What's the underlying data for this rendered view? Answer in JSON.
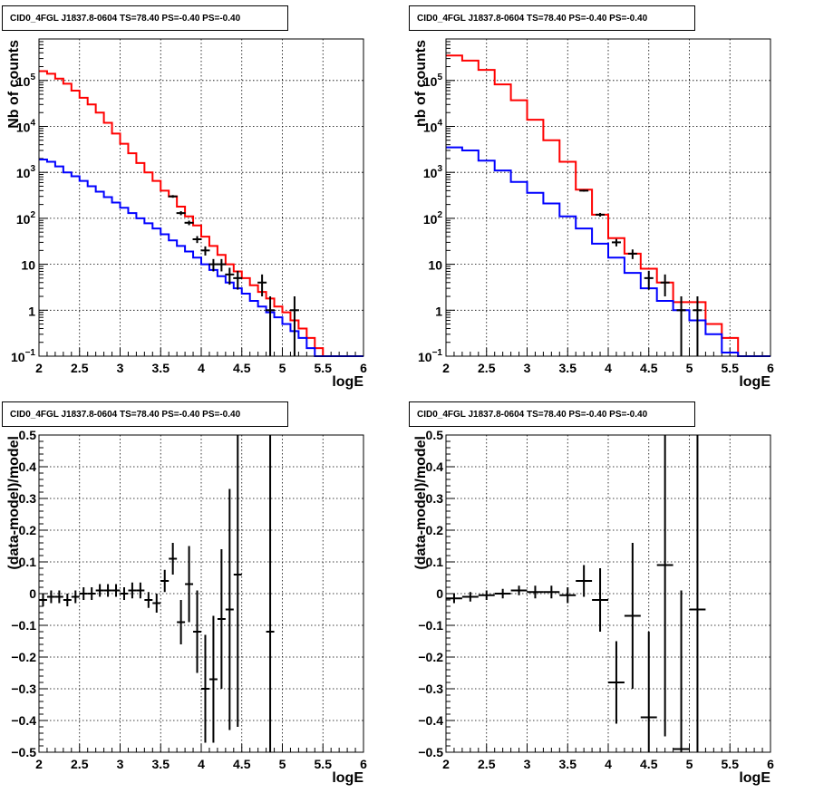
{
  "chart_data": [
    {
      "type": "histogram-log",
      "title": "CID0_4FGL J1837.8-0604 TS=78.40 PS=-0.40 PS=-0.40",
      "xlabel": "logE",
      "ylabel": "Nb of counts",
      "xlim": [
        2,
        6
      ],
      "ylim": [
        0.1,
        800000
      ],
      "log_y": true,
      "grid": true,
      "x_ticks": [
        "2",
        "2.5",
        "3",
        "3.5",
        "4",
        "4.5",
        "5",
        "5.5",
        "6"
      ],
      "y_ticks": [
        {
          "v": 0.1,
          "label": "10",
          "exp": "−1"
        },
        {
          "v": 1,
          "label": "1",
          "exp": ""
        },
        {
          "v": 10,
          "label": "10",
          "exp": ""
        },
        {
          "v": 100,
          "label": "10",
          "exp": "2"
        },
        {
          "v": 1000,
          "label": "10",
          "exp": "3"
        },
        {
          "v": 10000,
          "label": "10",
          "exp": "4"
        },
        {
          "v": 100000,
          "label": "10",
          "exp": "5"
        }
      ],
      "bin_edges": [
        2.0,
        2.1,
        2.2,
        2.3,
        2.4,
        2.5,
        2.6,
        2.7,
        2.8,
        2.9,
        3.0,
        3.1,
        3.2,
        3.3,
        3.4,
        3.5,
        3.6,
        3.7,
        3.8,
        3.9,
        4.0,
        4.1,
        4.2,
        4.3,
        4.4,
        4.5,
        4.6,
        4.7,
        4.8,
        4.9,
        5.0,
        5.1,
        5.2,
        5.3,
        5.4,
        5.5,
        5.6,
        5.7,
        5.8,
        5.9,
        6.0
      ],
      "series": [
        {
          "color": "#ff0000",
          "values": [
            160000,
            140000,
            110000,
            85000,
            60000,
            42000,
            30000,
            20000,
            12000,
            7000,
            4200,
            2600,
            1600,
            1000,
            650,
            400,
            300,
            180,
            110,
            70,
            40,
            25,
            16,
            10,
            7,
            5,
            3.5,
            2.5,
            1.8,
            1.2,
            0.9,
            0.6,
            0.4,
            0.25,
            0.15,
            0.1,
            0.1,
            0.1,
            0.1,
            0.1
          ]
        },
        {
          "color": "#0000ff",
          "values": [
            1900,
            1700,
            1350,
            1000,
            820,
            650,
            500,
            380,
            290,
            220,
            170,
            130,
            100,
            78,
            60,
            45,
            33,
            25,
            19,
            14,
            10,
            7.5,
            5.5,
            4,
            3,
            2.3,
            1.6,
            1.2,
            0.9,
            0.7,
            0.5,
            0.35,
            0.25,
            0.15,
            0.1,
            0.1,
            0.1,
            0.1,
            0.1,
            0.1
          ]
        }
      ],
      "data_points": [
        {
          "x": 3.65,
          "y": 300,
          "lo": 280,
          "hi": 320
        },
        {
          "x": 3.75,
          "y": 130,
          "lo": 117,
          "hi": 143
        },
        {
          "x": 3.85,
          "y": 80,
          "lo": 71,
          "hi": 89
        },
        {
          "x": 3.95,
          "y": 35,
          "lo": 29,
          "hi": 41
        },
        {
          "x": 4.05,
          "y": 20,
          "lo": 15.5,
          "hi": 24.5
        },
        {
          "x": 4.15,
          "y": 10,
          "lo": 7,
          "hi": 13
        },
        {
          "x": 4.25,
          "y": 10,
          "lo": 7,
          "hi": 13
        },
        {
          "x": 4.35,
          "y": 6,
          "lo": 3.6,
          "hi": 8.4
        },
        {
          "x": 4.45,
          "y": 5,
          "lo": 2.8,
          "hi": 7.2
        },
        {
          "x": 4.75,
          "y": 4,
          "lo": 2,
          "hi": 6
        },
        {
          "x": 4.85,
          "y": 1,
          "lo": 0.1,
          "hi": 2
        },
        {
          "x": 5.15,
          "y": 1,
          "lo": 0.1,
          "hi": 2
        }
      ]
    },
    {
      "type": "histogram-log",
      "title": "CID0_4FGL J1837.8-0604 TS=78.40 PS=-0.40 PS=-0.40",
      "xlabel": "logE",
      "ylabel": "nb of counts",
      "xlim": [
        2,
        6
      ],
      "ylim": [
        0.1,
        800000
      ],
      "log_y": true,
      "grid": true,
      "x_ticks": [
        "2",
        "2.5",
        "3",
        "3.5",
        "4",
        "4.5",
        "5",
        "5.5",
        "6"
      ],
      "y_ticks": [
        {
          "v": 0.1,
          "label": "10",
          "exp": "−1"
        },
        {
          "v": 1,
          "label": "1",
          "exp": ""
        },
        {
          "v": 10,
          "label": "10",
          "exp": ""
        },
        {
          "v": 100,
          "label": "10",
          "exp": "2"
        },
        {
          "v": 1000,
          "label": "10",
          "exp": "3"
        },
        {
          "v": 10000,
          "label": "10",
          "exp": "4"
        },
        {
          "v": 100000,
          "label": "10",
          "exp": "5"
        }
      ],
      "bin_edges": [
        2.0,
        2.2,
        2.4,
        2.6,
        2.8,
        3.0,
        3.2,
        3.4,
        3.6,
        3.8,
        4.0,
        4.2,
        4.4,
        4.6,
        4.8,
        5.0,
        5.2,
        5.4,
        5.6,
        5.8,
        6.0
      ],
      "series": [
        {
          "color": "#ff0000",
          "values": [
            350000,
            270000,
            170000,
            82000,
            37000,
            14000,
            5000,
            1700,
            420,
            120,
            37,
            17,
            8,
            4,
            1.5,
            1.5,
            0.5,
            0.25,
            0.1,
            0.1
          ]
        },
        {
          "color": "#0000ff",
          "values": [
            3500,
            3000,
            1800,
            1100,
            620,
            360,
            210,
            110,
            60,
            28,
            14,
            6.5,
            3,
            1.6,
            1,
            0.6,
            0.3,
            0.12,
            0.1,
            0.1
          ]
        }
      ],
      "data_points": [
        {
          "x": 3.7,
          "y": 400,
          "lo": 380,
          "hi": 420
        },
        {
          "x": 3.9,
          "y": 120,
          "lo": 109,
          "hi": 131
        },
        {
          "x": 4.1,
          "y": 30,
          "lo": 24.5,
          "hi": 35.5
        },
        {
          "x": 4.3,
          "y": 17,
          "lo": 13,
          "hi": 21
        },
        {
          "x": 4.5,
          "y": 5,
          "lo": 2.8,
          "hi": 7.2
        },
        {
          "x": 4.7,
          "y": 4,
          "lo": 2,
          "hi": 6
        },
        {
          "x": 4.9,
          "y": 1,
          "lo": 0.1,
          "hi": 2
        },
        {
          "x": 5.1,
          "y": 1,
          "lo": 0.1,
          "hi": 2
        }
      ]
    },
    {
      "type": "scatter-errorbars",
      "title": "CID0_4FGL J1837.8-0604 TS=78.40 PS=-0.40 PS=-0.40",
      "xlabel": "logE",
      "ylabel": "(data-model)/model",
      "xlim": [
        2,
        6
      ],
      "ylim": [
        -0.5,
        0.5
      ],
      "grid": true,
      "x_ticks": [
        "2",
        "2.5",
        "3",
        "3.5",
        "4",
        "4.5",
        "5",
        "5.5",
        "6"
      ],
      "y_ticks": [
        "−0.5",
        "−0.4",
        "−0.3",
        "−0.2",
        "−0.1",
        "0",
        "0.1",
        "0.2",
        "0.3",
        "0.4",
        "0.5"
      ],
      "half_width": 0.05,
      "points": [
        {
          "x": 2.05,
          "y": -0.02,
          "err": 0.02
        },
        {
          "x": 2.15,
          "y": -0.01,
          "err": 0.02
        },
        {
          "x": 2.25,
          "y": -0.01,
          "err": 0.02
        },
        {
          "x": 2.35,
          "y": -0.02,
          "err": 0.02
        },
        {
          "x": 2.45,
          "y": -0.01,
          "err": 0.02
        },
        {
          "x": 2.55,
          "y": 0.0,
          "err": 0.02
        },
        {
          "x": 2.65,
          "y": 0.0,
          "err": 0.02
        },
        {
          "x": 2.75,
          "y": 0.01,
          "err": 0.02
        },
        {
          "x": 2.85,
          "y": 0.01,
          "err": 0.02
        },
        {
          "x": 2.95,
          "y": 0.01,
          "err": 0.02
        },
        {
          "x": 3.05,
          "y": 0.0,
          "err": 0.02
        },
        {
          "x": 3.15,
          "y": 0.01,
          "err": 0.025
        },
        {
          "x": 3.25,
          "y": 0.01,
          "err": 0.025
        },
        {
          "x": 3.35,
          "y": -0.02,
          "err": 0.025
        },
        {
          "x": 3.45,
          "y": -0.03,
          "err": 0.03
        },
        {
          "x": 3.55,
          "y": 0.04,
          "err": 0.035
        },
        {
          "x": 3.65,
          "y": 0.11,
          "err": 0.05
        },
        {
          "x": 3.75,
          "y": -0.09,
          "err": 0.07
        },
        {
          "x": 3.85,
          "y": 0.03,
          "err": 0.12
        },
        {
          "x": 3.95,
          "y": -0.12,
          "err": 0.13
        },
        {
          "x": 4.05,
          "y": -0.3,
          "err": 0.17
        },
        {
          "x": 4.15,
          "y": -0.27,
          "err": 0.2
        },
        {
          "x": 4.25,
          "y": -0.08,
          "err": 0.22
        },
        {
          "x": 4.35,
          "y": -0.05,
          "err": 0.38
        },
        {
          "x": 4.45,
          "y": 0.06,
          "err": 0.48
        },
        {
          "x": 4.85,
          "y": -0.12,
          "err": 1.0
        }
      ]
    },
    {
      "type": "scatter-errorbars",
      "title": "CID0_4FGL J1837.8-0604 TS=78.40 PS=-0.40 PS=-0.40",
      "xlabel": "logE",
      "ylabel": "(data-model)/model",
      "xlim": [
        2,
        6
      ],
      "ylim": [
        -0.5,
        0.5
      ],
      "grid": true,
      "x_ticks": [
        "2",
        "2.5",
        "3",
        "3.5",
        "4",
        "4.5",
        "5",
        "5.5",
        "6"
      ],
      "y_ticks": [
        "−0.5",
        "−0.4",
        "−0.3",
        "−0.2",
        "−0.1",
        "0",
        "0.1",
        "0.2",
        "0.3",
        "0.4",
        "0.5"
      ],
      "half_width": 0.1,
      "points": [
        {
          "x": 2.1,
          "y": -0.015,
          "err": 0.015
        },
        {
          "x": 2.3,
          "y": -0.01,
          "err": 0.015
        },
        {
          "x": 2.5,
          "y": -0.005,
          "err": 0.015
        },
        {
          "x": 2.7,
          "y": 0.0,
          "err": 0.015
        },
        {
          "x": 2.9,
          "y": 0.01,
          "err": 0.015
        },
        {
          "x": 3.1,
          "y": 0.005,
          "err": 0.02
        },
        {
          "x": 3.3,
          "y": 0.005,
          "err": 0.02
        },
        {
          "x": 3.5,
          "y": -0.005,
          "err": 0.025
        },
        {
          "x": 3.7,
          "y": 0.04,
          "err": 0.05
        },
        {
          "x": 3.9,
          "y": -0.02,
          "err": 0.1
        },
        {
          "x": 4.1,
          "y": -0.28,
          "err": 0.13
        },
        {
          "x": 4.3,
          "y": -0.07,
          "err": 0.23
        },
        {
          "x": 4.5,
          "y": -0.39,
          "err": 0.27
        },
        {
          "x": 4.7,
          "y": 0.09,
          "err": 0.54
        },
        {
          "x": 4.9,
          "y": -0.49,
          "err": 0.5
        },
        {
          "x": 5.1,
          "y": -0.05,
          "err": 1.0
        }
      ]
    }
  ]
}
